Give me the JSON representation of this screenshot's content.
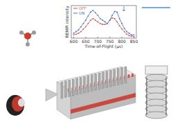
{
  "chart_data": {
    "type": "line",
    "x_label": "Time-of-Flight (µs)",
    "y_label": "REMPI intensity",
    "x": [
      600,
      610,
      620,
      630,
      640,
      650,
      660,
      670,
      680,
      690,
      700,
      710,
      720,
      730,
      740,
      750,
      760,
      770,
      780,
      790,
      800,
      810,
      820,
      830,
      840,
      850
    ],
    "series": [
      {
        "name": "OFF",
        "color": "#e0504a",
        "marker": "o",
        "line_style": "solid",
        "values": [
          0.1,
          0.12,
          0.15,
          0.2,
          0.28,
          0.35,
          0.45,
          0.55,
          0.6,
          0.55,
          0.5,
          0.45,
          0.42,
          0.42,
          0.45,
          0.55,
          0.62,
          0.6,
          0.5,
          0.38,
          0.28,
          0.2,
          0.12,
          0.08,
          0.06,
          0.05
        ]
      },
      {
        "name": "ON",
        "color": "#3f6fd8",
        "marker": "o",
        "line_style": "solid",
        "values": [
          0.15,
          0.2,
          0.25,
          0.35,
          0.45,
          0.55,
          0.68,
          0.8,
          0.85,
          0.78,
          0.7,
          0.6,
          0.55,
          0.5,
          0.45,
          0.55,
          0.7,
          0.82,
          0.8,
          0.6,
          0.45,
          0.3,
          0.2,
          0.15,
          0.1,
          0.1
        ]
      }
    ],
    "xlim": [
      590,
      860
    ],
    "xticks": [
      600,
      650,
      700,
      750,
      800,
      850
    ],
    "ylim": [
      0,
      1
    ],
    "yticks": [],
    "tick_labels": "x",
    "legend": "upper left",
    "grid": false
  }
}
